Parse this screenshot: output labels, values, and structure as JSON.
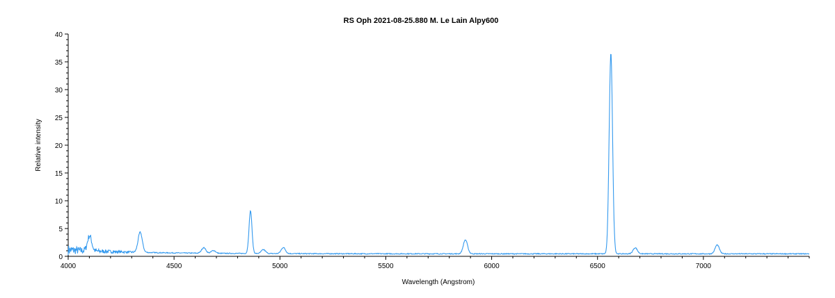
{
  "chart_data": {
    "type": "line",
    "title": "RS Oph   2021-08-25.880  M. Le Lain  Alpy600",
    "xlabel": "Wavelength (Angstrom)",
    "ylabel": "Relative intensity",
    "xlim": [
      4000,
      7500
    ],
    "ylim": [
      0,
      40
    ],
    "x_ticks": [
      4000,
      4500,
      5000,
      5500,
      6000,
      6500,
      7000
    ],
    "y_ticks": [
      0,
      5,
      10,
      15,
      20,
      25,
      30,
      35,
      40
    ],
    "grid": false,
    "line_color": "#3399ee",
    "peaks": [
      {
        "x": 4101,
        "y": 3.2
      },
      {
        "x": 4340,
        "y": 4.1
      },
      {
        "x": 4640,
        "y": 1.5
      },
      {
        "x": 4686,
        "y": 1.0
      },
      {
        "x": 4861,
        "y": 8.2
      },
      {
        "x": 4922,
        "y": 1.2
      },
      {
        "x": 5016,
        "y": 1.6
      },
      {
        "x": 5876,
        "y": 3.0
      },
      {
        "x": 6563,
        "y": 36.7
      },
      {
        "x": 6678,
        "y": 1.6
      },
      {
        "x": 7065,
        "y": 2.1
      }
    ]
  }
}
